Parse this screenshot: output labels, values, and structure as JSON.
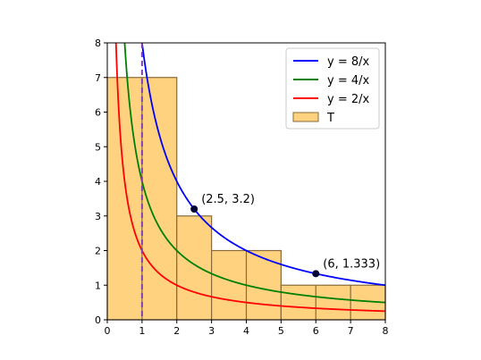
{
  "chart_data": {
    "type": "line",
    "title": "",
    "xlabel": "",
    "ylabel": "",
    "xlim": [
      0,
      8
    ],
    "ylim": [
      0,
      8
    ],
    "x_ticks": [
      "0",
      "1",
      "2",
      "3",
      "4",
      "5",
      "6",
      "7",
      "8"
    ],
    "y_ticks": [
      "0",
      "1",
      "2",
      "3",
      "4",
      "5",
      "6",
      "7",
      "8"
    ],
    "grid": false,
    "legend_position": "top-right",
    "series": [
      {
        "name": "y = 8/x",
        "k": 8,
        "color": "#0000ff"
      },
      {
        "name": "y = 4/x",
        "k": 4,
        "color": "#008000"
      },
      {
        "name": "y = 2/x",
        "k": 2,
        "color": "#ff0000"
      }
    ],
    "bars": {
      "name": "T",
      "fill": "#ffd280",
      "edge": "#8a6a3a",
      "data": [
        {
          "x0": 0,
          "x1": 2,
          "height": 7
        },
        {
          "x0": 2,
          "x1": 3,
          "height": 3
        },
        {
          "x0": 3,
          "x1": 5,
          "height": 2
        },
        {
          "x0": 5,
          "x1": 8,
          "height": 1
        }
      ],
      "internal_x": [
        1,
        4,
        6,
        7
      ]
    },
    "vline": {
      "x": 1,
      "color": "#8040b0",
      "style": "dashed"
    },
    "points": [
      {
        "x": 2.5,
        "y": 3.2,
        "label": "(2.5, 3.2)"
      },
      {
        "x": 6,
        "y": 1.333,
        "label": "(6, 1.333)"
      }
    ],
    "point_color": "#000033"
  }
}
